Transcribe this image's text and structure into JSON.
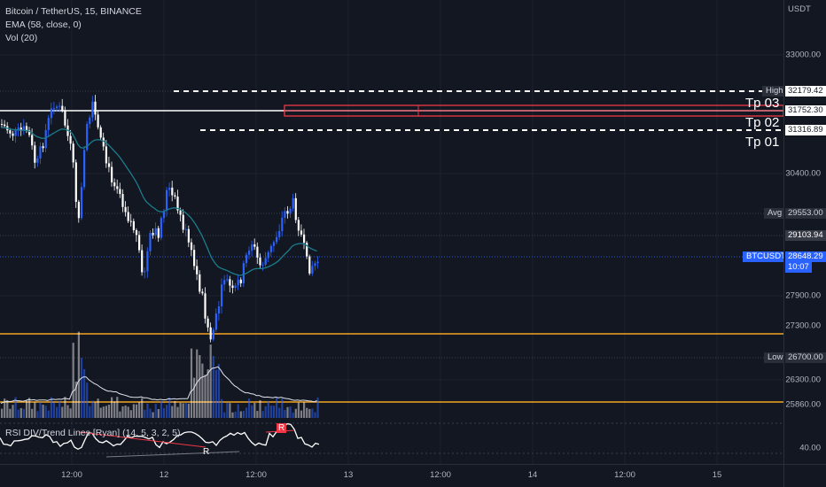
{
  "legend": {
    "symbol": "Bitcoin / TetherUS, 15, BINANCE",
    "ema": "EMA (58, close, 0)",
    "vol": "Vol (20)",
    "rsi": "RSI DIV/Trend Lines [Ryan] (14, 5, 3, 2, 5)"
  },
  "price_scale": {
    "currency": "USDT",
    "ticks": [
      "33000.00",
      "30400.00",
      "27900.00",
      "27300.00",
      "26300.00",
      "25860.00"
    ],
    "rsi_tick": "40.00"
  },
  "time_scale": {
    "labels": [
      "12:00",
      "12",
      "12:00",
      "13",
      "12:00",
      "14",
      "12:00",
      "15"
    ]
  },
  "levels": {
    "high": {
      "name": "High",
      "value": "32179.42"
    },
    "level2": {
      "value": "31752.30"
    },
    "level3": {
      "value": "31316.89"
    },
    "avg": {
      "name": "Avg",
      "value": "29553.00"
    },
    "ref": {
      "value": "29103.94"
    },
    "current": {
      "name": "BTCUSDT",
      "value": "28648.29",
      "countdown": "10:07"
    },
    "low": {
      "name": "Low",
      "value": "26700.00"
    }
  },
  "targets": [
    "Tp 03",
    "Tp 02",
    "Tp 01"
  ],
  "rsi_markers": [
    "R",
    "R"
  ],
  "colors": {
    "background": "#131722",
    "up": "#2962ff",
    "down": "#ffffff",
    "ema": "#1b7d8c",
    "orange": "#f5a623",
    "target_box": "#f23645",
    "current_badge": "#2962ff"
  }
}
